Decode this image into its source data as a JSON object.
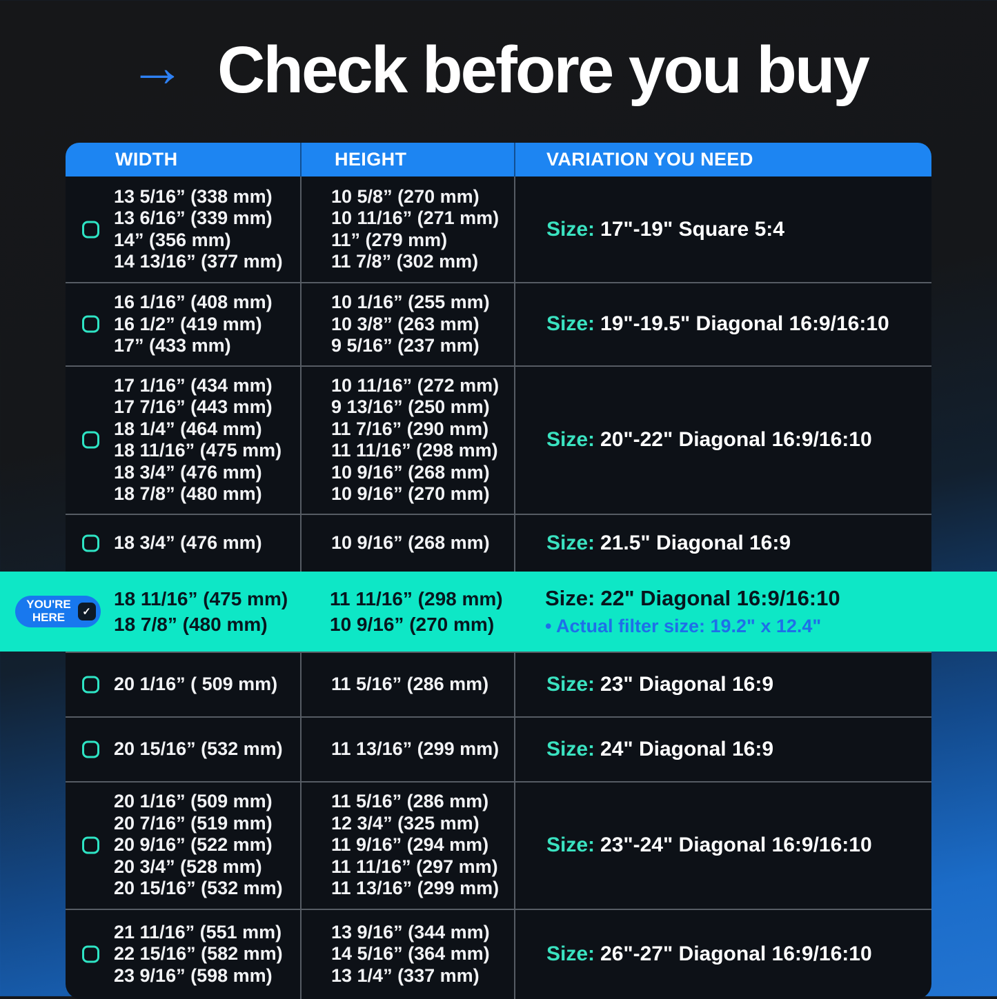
{
  "title": {
    "text": "Check before you buy"
  },
  "icons": {
    "arrow_right": "→",
    "checkmark": "✓",
    "checkbox": "rounded-square-outline"
  },
  "colors": {
    "header_blue": "#1d85f2",
    "highlight_teal": "#0ee7c6",
    "accent_teal": "#2ee4c4",
    "badge_blue": "#1878ee",
    "note_blue": "#1e6fe8",
    "background_blue": "#1b6cc8",
    "table_background": "#0d1117"
  },
  "badge": {
    "label": "YOU'RE HERE"
  },
  "chart_data": {
    "type": "table",
    "title": "Check before you buy",
    "columns": [
      "WIDTH",
      "HEIGHT",
      "VARIATION YOU NEED"
    ],
    "size_prefix": "Size:",
    "rows": [
      {
        "widths": [
          "13 5/16” (338 mm)",
          "13 6/16” (339 mm)",
          "14” (356 mm)",
          "14 13/16” (377 mm)"
        ],
        "heights": [
          "10 5/8” (270 mm)",
          "10 11/16” (271 mm)",
          "11” (279 mm)",
          "11 7/8” (302 mm)"
        ],
        "variation": "17\"-19\" Square 5:4",
        "highlighted": false
      },
      {
        "widths": [
          "16 1/16” (408 mm)",
          "16 1/2” (419 mm)",
          "17” (433 mm)"
        ],
        "heights": [
          "10 1/16” (255 mm)",
          "10 3/8” (263 mm)",
          "9 5/16” (237 mm)"
        ],
        "variation": "19\"-19.5\" Diagonal 16:9/16:10",
        "highlighted": false
      },
      {
        "widths": [
          "17 1/16” (434 mm)",
          "17 7/16” (443 mm)",
          "18 1/4” (464 mm)",
          "18 11/16” (475 mm)",
          "18 3/4” (476 mm)",
          "18 7/8” (480 mm)"
        ],
        "heights": [
          "10 11/16” (272 mm)",
          "9 13/16” (250 mm)",
          "11 7/16” (290 mm)",
          "11 11/16” (298 mm)",
          "10 9/16” (268 mm)",
          "10 9/16” (270 mm)"
        ],
        "variation": "20\"-22\" Diagonal 16:9/16:10",
        "highlighted": false
      },
      {
        "widths": [
          "18 3/4” (476 mm)"
        ],
        "heights": [
          "10 9/16” (268 mm)"
        ],
        "variation": "21.5\" Diagonal 16:9",
        "highlighted": false
      },
      {
        "widths": [
          "18 11/16” (475 mm)",
          "18 7/8” (480 mm)"
        ],
        "heights": [
          "11 11/16” (298 mm)",
          "10 9/16” (270 mm)"
        ],
        "variation": "22\" Diagonal 16:9/16:10",
        "note": "• Actual filter size: 19.2\" x 12.4\"",
        "badge": "YOU'RE HERE",
        "highlighted": true
      },
      {
        "widths": [
          "20 1/16” ( 509 mm)"
        ],
        "heights": [
          "11 5/16” (286 mm)"
        ],
        "variation": "23\" Diagonal 16:9",
        "highlighted": false
      },
      {
        "widths": [
          "20 15/16” (532 mm)"
        ],
        "heights": [
          "11 13/16” (299 mm)"
        ],
        "variation": "24\" Diagonal 16:9",
        "highlighted": false
      },
      {
        "widths": [
          "20 1/16” (509 mm)",
          "20 7/16” (519 mm)",
          "20 9/16” (522 mm)",
          "20 3/4” (528 mm)",
          "20 15/16” (532 mm)"
        ],
        "heights": [
          "11 5/16” (286 mm)",
          "12 3/4” (325 mm)",
          "11 9/16” (294 mm)",
          "11 11/16” (297 mm)",
          "11 13/16” (299 mm)"
        ],
        "variation": "23\"-24\" Diagonal 16:9/16:10",
        "highlighted": false
      },
      {
        "widths": [
          "21 11/16” (551 mm)",
          "22 15/16” (582 mm)",
          "23 9/16” (598 mm)"
        ],
        "heights": [
          "13 9/16” (344 mm)",
          "14 5/16” (364 mm)",
          "13 1/4” (337 mm)"
        ],
        "variation": "26\"-27\" Diagonal 16:9/16:10",
        "highlighted": false
      }
    ]
  }
}
